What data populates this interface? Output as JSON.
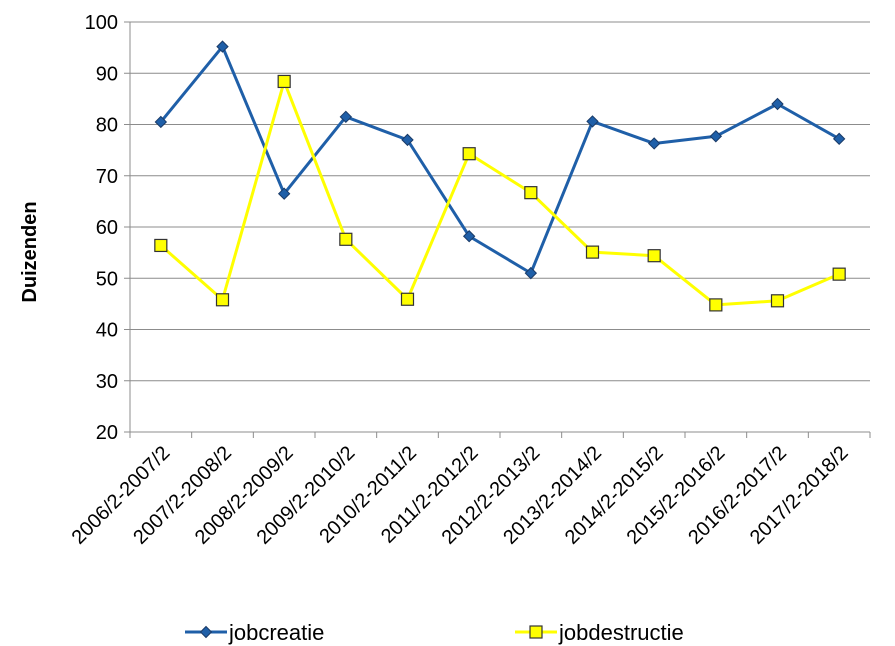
{
  "chart_data": {
    "type": "line",
    "ylabel": "Duizenden",
    "xlabel": "",
    "ylim": [
      20,
      100
    ],
    "yticks": [
      20,
      30,
      40,
      50,
      60,
      70,
      80,
      90,
      100
    ],
    "grid": true,
    "legend_position": "bottom",
    "categories": [
      "2006/2-2007/2",
      "2007/2-2008/2",
      "2008/2-2009/2",
      "2009/2-2010/2",
      "2010/2-2011/2",
      "2011/2-2012/2",
      "2012/2-2013/2",
      "2013/2-2014/2",
      "2014/2-2015/2",
      "2015/2-2016/2",
      "2016/2-2017/2",
      "2017/2-2018/2"
    ],
    "series": [
      {
        "name": "jobcreatie",
        "color": "#1f5fa8",
        "marker": "diamond",
        "values": [
          80.5,
          95.2,
          66.5,
          81.5,
          77.0,
          58.2,
          51.0,
          80.6,
          76.3,
          77.7,
          84.0,
          77.2
        ]
      },
      {
        "name": "jobdestructie",
        "color": "#ffff00",
        "marker": "square",
        "values": [
          56.4,
          45.8,
          88.4,
          57.6,
          45.9,
          74.3,
          66.7,
          55.1,
          54.4,
          44.8,
          45.6,
          50.8
        ]
      }
    ]
  }
}
